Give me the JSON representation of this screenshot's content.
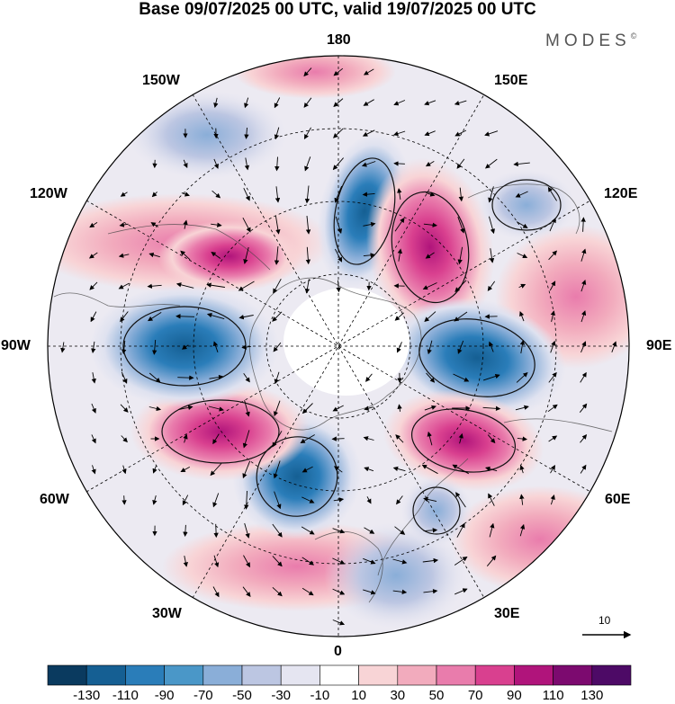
{
  "title": "Base 09/07/2025 00 UTC, valid 19/07/2025 00 UTC",
  "brand": "MODES",
  "brand_mark": "©",
  "longitude_labels": {
    "top": "180",
    "bottom": "0",
    "left": "90W",
    "right": "90E",
    "upper_left": "150W",
    "upper_right": "150E",
    "mid_upper_left": "120W",
    "mid_upper_right": "120E",
    "mid_lower_left": "60W",
    "mid_lower_right": "60E",
    "lower_left": "30W",
    "lower_right": "30E"
  },
  "vector_reference": "10",
  "colorbar": {
    "ticks": [
      "-130",
      "-110",
      "-90",
      "-70",
      "-50",
      "-30",
      "-10",
      "10",
      "30",
      "50",
      "70",
      "90",
      "110",
      "130"
    ],
    "colors": [
      "#0a3a5f",
      "#155f93",
      "#2a7db9",
      "#4a97c8",
      "#8aaed8",
      "#bcc6e2",
      "#e5e5f1",
      "#ffffff",
      "#f8d4d6",
      "#f2abbd",
      "#e97cac",
      "#d9408f",
      "#b0147b",
      "#7c0a6f",
      "#4d0a66"
    ]
  },
  "map": {
    "projection": "north polar stereographic",
    "anomalies": [
      {
        "sign": "negative",
        "region": "North Pacific (near 180)",
        "level": -110
      },
      {
        "sign": "positive",
        "region": "Far East Siberia (150E)",
        "level": 110
      },
      {
        "sign": "negative",
        "region": "Central Siberia (90E)",
        "level": -110
      },
      {
        "sign": "positive",
        "region": "Western Siberia (60E)",
        "level": 90
      },
      {
        "sign": "negative",
        "region": "Northern Europe (30E)",
        "level": -50
      },
      {
        "sign": "negative",
        "region": "North Atlantic (30W)",
        "level": -90
      },
      {
        "sign": "positive",
        "region": "Western Atlantic (60W)",
        "level": 110
      },
      {
        "sign": "negative",
        "region": "North America (90W)",
        "level": -110
      },
      {
        "sign": "positive",
        "region": "Alaska/Canada (120W)",
        "level": 70
      },
      {
        "sign": "negative",
        "region": "Lake Baikal region (120E)",
        "level": -50
      }
    ]
  }
}
